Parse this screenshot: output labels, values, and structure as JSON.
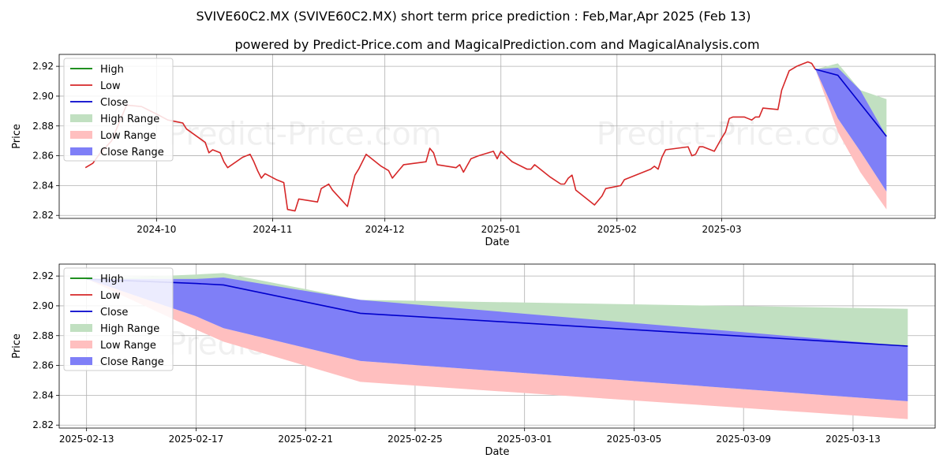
{
  "title": "SVIVE60C2.MX (SVIVE60C2.MX) short term price prediction : Feb,Mar,Apr 2025 (Feb 13)",
  "subtitle": "powered by Predict-Price.com and MagicalPrediction.com and MagicalAnalysis.com",
  "watermark": "Predict-Price.com",
  "colors": {
    "high": "#008000",
    "low": "#d62728",
    "close": "#0000cc",
    "high_range": "#c1e0c1",
    "low_range": "#ffbfbf",
    "close_range": "#7f7ff7"
  },
  "chart_data": [
    {
      "type": "line",
      "xlabel": "Date",
      "ylabel": "Price",
      "x_ticks": [
        "2024-10",
        "2024-11",
        "2024-12",
        "2025-01",
        "2025-02",
        "2025-03"
      ],
      "y_ticks": [
        "2.82",
        "2.84",
        "2.86",
        "2.88",
        "2.90",
        "2.92"
      ],
      "ylim": [
        2.818,
        2.928
      ],
      "grid": true,
      "legend_position": "top-left",
      "legend": [
        "High",
        "Low",
        "Close",
        "High Range",
        "Low Range",
        "Close Range"
      ],
      "history_series": {
        "name": "Low",
        "points": [
          [
            "2024-09-12",
            2.852
          ],
          [
            "2024-09-14",
            2.855
          ],
          [
            "2024-09-16",
            2.862
          ],
          [
            "2024-09-19",
            2.87
          ],
          [
            "2024-09-21",
            2.882
          ],
          [
            "2024-09-23",
            2.894
          ],
          [
            "2024-09-27",
            2.893
          ],
          [
            "2024-10-01",
            2.888
          ],
          [
            "2024-10-04",
            2.884
          ],
          [
            "2024-10-06",
            2.883
          ],
          [
            "2024-10-08",
            2.882
          ],
          [
            "2024-10-09",
            2.878
          ],
          [
            "2024-10-14",
            2.869
          ],
          [
            "2024-10-15",
            2.862
          ],
          [
            "2024-10-16",
            2.864
          ],
          [
            "2024-10-18",
            2.862
          ],
          [
            "2024-10-19",
            2.856
          ],
          [
            "2024-10-20",
            2.852
          ],
          [
            "2024-10-24",
            2.859
          ],
          [
            "2024-10-26",
            2.861
          ],
          [
            "2024-10-27",
            2.856
          ],
          [
            "2024-10-28",
            2.85
          ],
          [
            "2024-10-29",
            2.845
          ],
          [
            "2024-10-30",
            2.848
          ],
          [
            "2024-11-02",
            2.844
          ],
          [
            "2024-11-04",
            2.842
          ],
          [
            "2024-11-05",
            2.824
          ],
          [
            "2024-11-07",
            2.823
          ],
          [
            "2024-11-08",
            2.831
          ],
          [
            "2024-11-13",
            2.829
          ],
          [
            "2024-11-14",
            2.838
          ],
          [
            "2024-11-16",
            2.841
          ],
          [
            "2024-11-17",
            2.837
          ],
          [
            "2024-11-21",
            2.826
          ],
          [
            "2024-11-22",
            2.837
          ],
          [
            "2024-11-23",
            2.847
          ],
          [
            "2024-11-24",
            2.851
          ],
          [
            "2024-11-26",
            2.861
          ],
          [
            "2024-11-30",
            2.853
          ],
          [
            "2024-12-02",
            2.85
          ],
          [
            "2024-12-03",
            2.845
          ],
          [
            "2024-12-04",
            2.848
          ],
          [
            "2024-12-06",
            2.854
          ],
          [
            "2024-12-12",
            2.856
          ],
          [
            "2024-12-13",
            2.865
          ],
          [
            "2024-12-14",
            2.862
          ],
          [
            "2024-12-15",
            2.854
          ],
          [
            "2024-12-20",
            2.852
          ],
          [
            "2024-12-21",
            2.854
          ],
          [
            "2024-12-22",
            2.849
          ],
          [
            "2024-12-24",
            2.858
          ],
          [
            "2024-12-26",
            2.86
          ],
          [
            "2024-12-30",
            2.863
          ],
          [
            "2024-12-31",
            2.858
          ],
          [
            "2025-01-01",
            2.863
          ],
          [
            "2025-01-04",
            2.856
          ],
          [
            "2025-01-08",
            2.851
          ],
          [
            "2025-01-09",
            2.851
          ],
          [
            "2025-01-10",
            2.854
          ],
          [
            "2025-01-14",
            2.846
          ],
          [
            "2025-01-17",
            2.841
          ],
          [
            "2025-01-18",
            2.841
          ],
          [
            "2025-01-19",
            2.845
          ],
          [
            "2025-01-20",
            2.847
          ],
          [
            "2025-01-21",
            2.837
          ],
          [
            "2025-01-25",
            2.829
          ],
          [
            "2025-01-26",
            2.827
          ],
          [
            "2025-01-28",
            2.833
          ],
          [
            "2025-01-29",
            2.838
          ],
          [
            "2025-01-31",
            2.839
          ],
          [
            "2025-02-02",
            2.84
          ],
          [
            "2025-02-03",
            2.844
          ],
          [
            "2025-02-10",
            2.851
          ],
          [
            "2025-02-11",
            2.853
          ],
          [
            "2025-02-12",
            2.851
          ],
          [
            "2025-02-13",
            2.859
          ],
          [
            "2025-02-14",
            2.864
          ],
          [
            "2025-02-20",
            2.866
          ],
          [
            "2025-02-21",
            2.86
          ],
          [
            "2025-02-22",
            2.861
          ],
          [
            "2025-02-23",
            2.866
          ],
          [
            "2025-02-24",
            2.866
          ],
          [
            "2025-02-27",
            2.863
          ],
          [
            "2025-03-01",
            2.872
          ],
          [
            "2025-03-02",
            2.876
          ],
          [
            "2025-03-03",
            2.885
          ],
          [
            "2025-03-04",
            2.886
          ],
          [
            "2025-03-07",
            2.886
          ],
          [
            "2025-03-08",
            2.885
          ],
          [
            "2025-03-09",
            2.884
          ],
          [
            "2025-03-10",
            2.886
          ],
          [
            "2025-03-11",
            2.886
          ],
          [
            "2025-03-12",
            2.892
          ],
          [
            "2025-03-16",
            2.891
          ],
          [
            "2025-03-17",
            2.904
          ],
          [
            "2025-03-19",
            2.917
          ],
          [
            "2025-03-21",
            2.92
          ],
          [
            "2025-03-24",
            2.923
          ],
          [
            "2025-03-25",
            2.922
          ],
          [
            "2025-03-26",
            2.918
          ]
        ]
      },
      "history_date_span": [
        "2024-09-06",
        "2025-03-31"
      ],
      "x_date_span": [
        "2024-09-05",
        "2025-04-27"
      ],
      "forecast": {
        "x": [
          "2025-03-26",
          "2025-04-01",
          "2025-04-07",
          "2025-04-14"
        ],
        "close": [
          2.918,
          2.914,
          2.895,
          2.873
        ],
        "high_range": {
          "upper": [
            2.918,
            2.922,
            2.904,
            2.898
          ],
          "lower": [
            2.918,
            2.914,
            2.895,
            2.873
          ]
        },
        "close_range": {
          "upper": [
            2.918,
            2.919,
            2.904,
            2.873
          ],
          "lower": [
            2.918,
            2.885,
            2.863,
            2.836
          ]
        },
        "low_range": {
          "upper": [
            2.918,
            2.885,
            2.863,
            2.836
          ],
          "lower": [
            2.918,
            2.876,
            2.849,
            2.824
          ]
        }
      }
    },
    {
      "type": "line",
      "xlabel": "Date",
      "ylabel": "Price",
      "x_ticks": [
        "2025-02-13",
        "2025-02-17",
        "2025-02-21",
        "2025-02-25",
        "2025-03-01",
        "2025-03-05",
        "2025-03-09",
        "2025-03-13"
      ],
      "y_ticks": [
        "2.82",
        "2.84",
        "2.86",
        "2.88",
        "2.90",
        "2.92"
      ],
      "ylim": [
        2.818,
        2.928
      ],
      "grid": true,
      "legend_position": "top-left",
      "legend": [
        "High",
        "Low",
        "Close",
        "High Range",
        "Low Range",
        "Close Range"
      ],
      "x_date_span": [
        "2025-02-12",
        "2025-03-16"
      ],
      "forecast": {
        "x": [
          "2025-02-13",
          "2025-02-17",
          "2025-02-18",
          "2025-02-23",
          "2025-03-15"
        ],
        "close": [
          2.918,
          2.915,
          2.914,
          2.895,
          2.873
        ],
        "high_range": {
          "upper": [
            2.918,
            2.921,
            2.922,
            2.904,
            2.898
          ],
          "lower": [
            2.918,
            2.915,
            2.914,
            2.895,
            2.873
          ]
        },
        "close_range": {
          "upper": [
            2.918,
            2.918,
            2.919,
            2.904,
            2.873
          ],
          "lower": [
            2.918,
            2.893,
            2.885,
            2.863,
            2.836
          ]
        },
        "low_range": {
          "upper": [
            2.918,
            2.893,
            2.885,
            2.863,
            2.836
          ],
          "lower": [
            2.918,
            2.884,
            2.876,
            2.849,
            2.824
          ]
        }
      }
    }
  ]
}
